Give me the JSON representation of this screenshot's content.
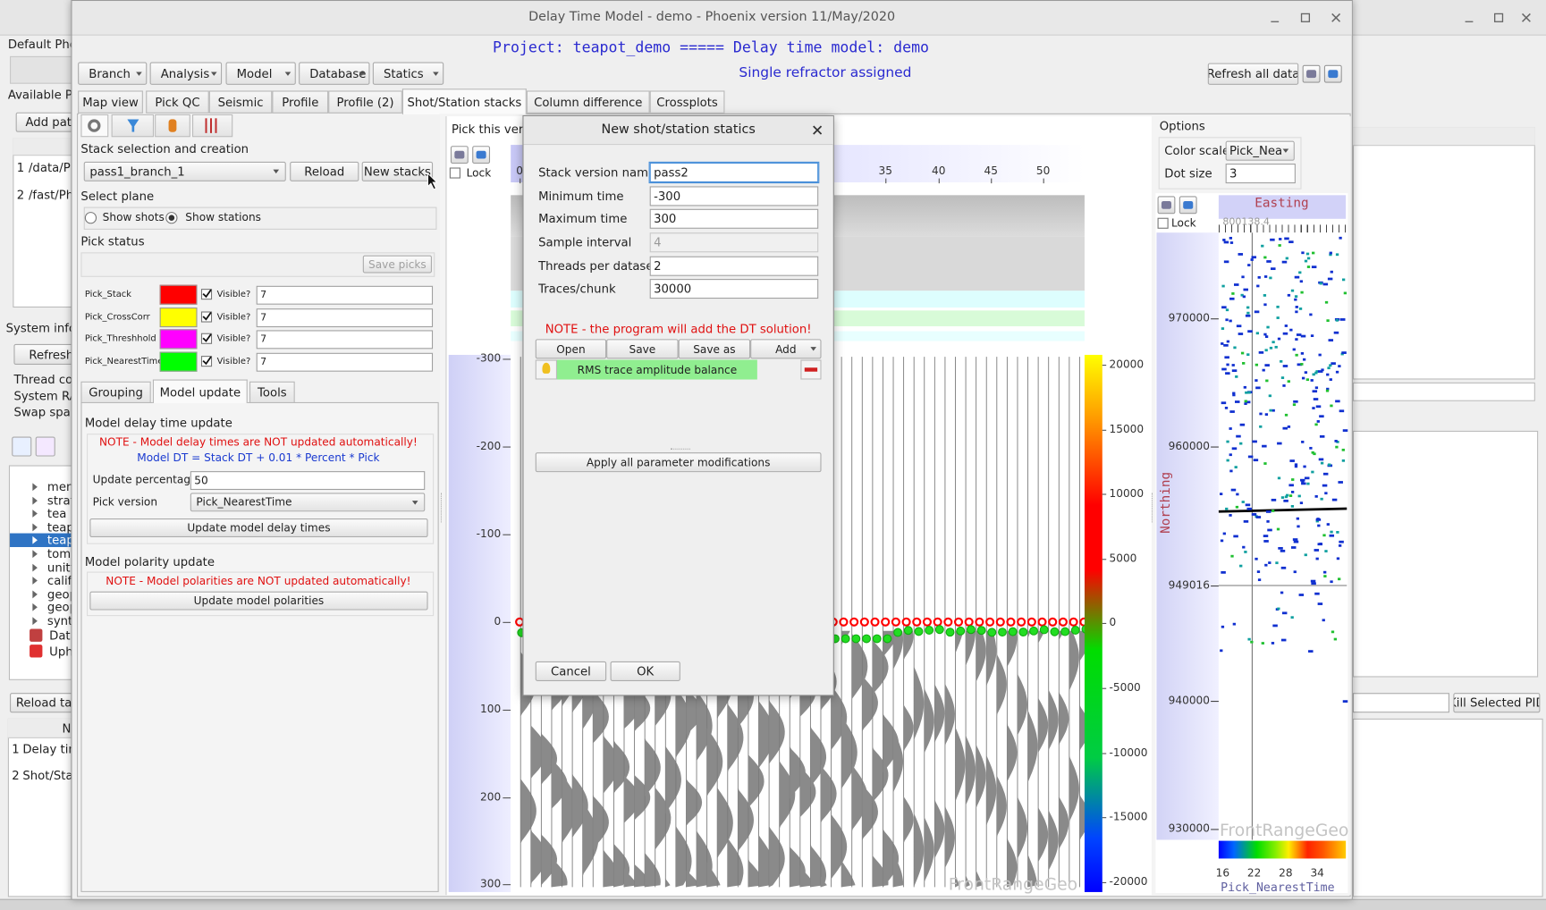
{
  "desktop_window": {
    "label_default": "Default Pho",
    "label_available": "Available Ph",
    "add_path": "Add path",
    "paths": [
      {
        "index": "1",
        "path": "/data/Ph"
      },
      {
        "index": "2",
        "path": "/fast/Pho"
      }
    ],
    "system_info": "System infor",
    "refresh": "Refresh",
    "system_stats": [
      "Thread cou",
      "System RA",
      "Swap spac"
    ],
    "tree": [
      "men",
      "strat",
      "tea",
      "teap",
      "teap",
      "tomp",
      "unity",
      "califo",
      "geop",
      "geop",
      "synt"
    ],
    "tree_selected": 4,
    "tree_roots": [
      "Data",
      "Uphe"
    ],
    "reload_tables": "Reload tabl",
    "table_header": "Na",
    "table_rows": [
      {
        "index": "1",
        "name": "Delay tim"
      },
      {
        "index": "2",
        "name": "Shot/Stat"
      }
    ],
    "kill_button": "Kill Selected PID"
  },
  "main_window": {
    "title": "Delay Time Model - demo - Phoenix version 11/May/2020",
    "project_line": "Project: teapot_demo ===== Delay time model: demo",
    "menus": [
      "Branch",
      "Analysis",
      "Model",
      "Database",
      "Statics"
    ],
    "status": "Single refractor assigned",
    "refresh_all": "Refresh all data",
    "tabs": [
      "Map view",
      "Pick QC",
      "Seismic",
      "Profile",
      "Profile (2)",
      "Shot/Station stacks",
      "Column difference",
      "Crossplots"
    ],
    "active_tab": 5
  },
  "stack_panel": {
    "section_stack": "Stack selection and creation",
    "stack_version": "pass1_branch_1",
    "reload": "Reload",
    "new_stacks": "New stacks",
    "section_plane": "Select plane",
    "plane_options": [
      "Show shots",
      "Show stations"
    ],
    "plane_selected": 1,
    "section_picks": "Pick status",
    "save_picks": "Save picks",
    "visible_label": "Visible?",
    "picks": [
      {
        "name": "Pick_Stack",
        "color": "#ff0000",
        "value": "7"
      },
      {
        "name": "Pick_CrossCorr",
        "color": "#ffff00",
        "value": "7"
      },
      {
        "name": "Pick_Threshhold",
        "color": "#ff00ff",
        "value": "7"
      },
      {
        "name": "Pick_NearestTime",
        "color": "#00ff00",
        "value": "7"
      }
    ],
    "subtabs": [
      "Grouping",
      "Model update",
      "Tools"
    ],
    "active_subtab": 1,
    "delay_heading": "Model delay time update",
    "delay_note": "NOTE - Model delay times are NOT updated automatically!",
    "delay_formula": "Model DT = Stack DT + 0.01 * Percent * Pick",
    "percentage_label": "Update percentage",
    "percentage": "50",
    "pick_version_label": "Pick version",
    "pick_version": "Pick_NearestTime",
    "update_delay": "Update model delay times",
    "polarity_heading": "Model polarity update",
    "polarity_note": "NOTE - Model polarities are NOT updated automatically!",
    "update_polarity": "Update model polarities"
  },
  "stack_view": {
    "pick_label": "Pick this vers",
    "lock": "Lock",
    "x_ticks": [
      "0",
      "35",
      "40",
      "45",
      "50"
    ],
    "y_ticks": [
      "-300",
      "-200",
      "-100",
      "0",
      "100",
      "200",
      "300"
    ],
    "colorbar_ticks": [
      "20000",
      "15000",
      "10000",
      "5000",
      "0",
      "-5000",
      "-10000",
      "-15000",
      "-20000"
    ],
    "watermark": "FrontRangeGeo"
  },
  "map_view": {
    "options": "Options",
    "color_scale_label": "Color scale",
    "color_scale": "Pick_Nea",
    "dot_size_label": "Dot size",
    "dot_size": "3",
    "lock": "Lock",
    "x_label": "Easting",
    "x_origin": "800138.4",
    "y_label": "Northing",
    "y_ticks": [
      "970000",
      "960000",
      "949016",
      "940000",
      "930000"
    ],
    "watermark": "FrontRangeGeo",
    "colorbar_ticks": [
      "16",
      "22",
      "28",
      "34"
    ],
    "colorbar_label": "Pick_NearestTime"
  },
  "dialog": {
    "title": "New shot/station statics",
    "fields": [
      {
        "label": "Stack version name",
        "value": "pass2"
      },
      {
        "label": "Minimum time",
        "value": "-300"
      },
      {
        "label": "Maximum time",
        "value": "300"
      },
      {
        "label": "Sample interval",
        "value": "4",
        "disabled": true
      },
      {
        "label": "Threads per dataset",
        "value": "2"
      },
      {
        "label": "Traces/chunk",
        "value": "30000"
      }
    ],
    "note": "NOTE - the program will add the DT solution!",
    "buttons": [
      "Open",
      "Save",
      "Save as",
      "Add"
    ],
    "process": "RMS trace amplitude balance",
    "apply": "Apply all parameter modifications",
    "cancel": "Cancel",
    "ok": "OK"
  }
}
